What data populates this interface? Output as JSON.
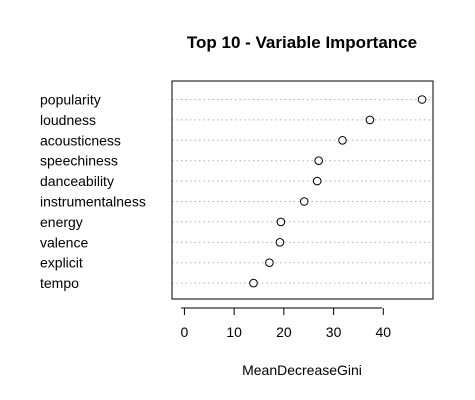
{
  "chart_data": {
    "type": "scatter",
    "title": "Top 10 - Variable Importance",
    "xlabel": "MeanDecreaseGini",
    "ylabel": "",
    "xlim": [
      -2.5,
      50
    ],
    "x_ticks": [
      0,
      10,
      20,
      30,
      40
    ],
    "grid": "dotted horizontal guide lines per variable",
    "variables": [
      "popularity",
      "loudness",
      "acousticness",
      "speechiness",
      "danceability",
      "instrumentalness",
      "energy",
      "valence",
      "explicit",
      "tempo"
    ],
    "values": [
      47.8,
      37.3,
      31.8,
      27.0,
      26.7,
      24.1,
      19.4,
      19.2,
      17.1,
      13.9
    ]
  }
}
